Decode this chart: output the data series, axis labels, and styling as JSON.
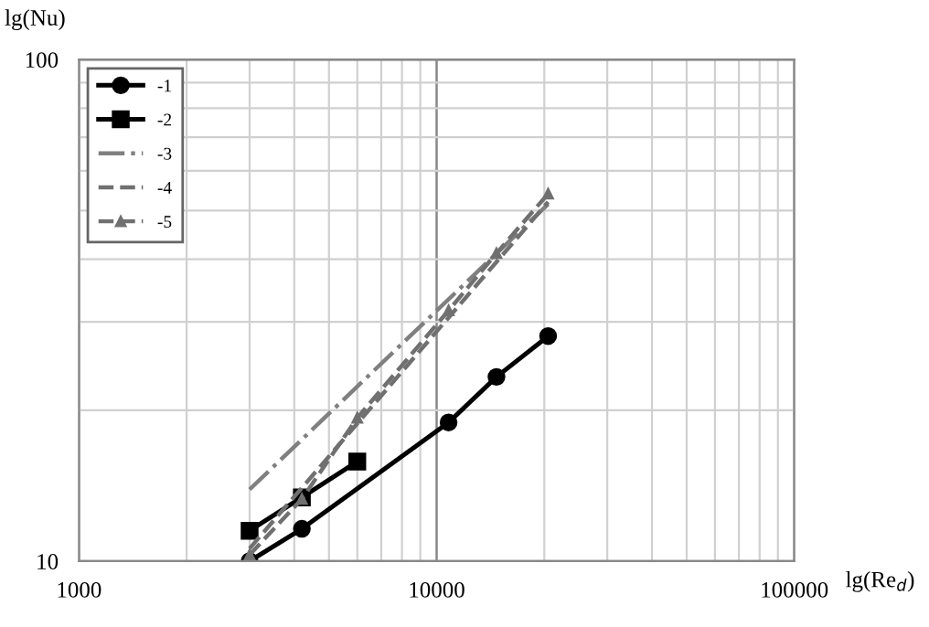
{
  "chart_data": {
    "type": "line",
    "xlabel": "lg(Re$_{d}$)",
    "ylabel": "lg(Nu)",
    "log": "xy",
    "xlim": [
      1000,
      100000
    ],
    "xticks": [
      1000,
      10000,
      100000
    ],
    "ylim": [
      10,
      100
    ],
    "yticks": [
      10,
      100
    ],
    "grid": true,
    "legend": "top left",
    "series": [
      {
        "name": "-1",
        "color": "#000000",
        "marker": "circle",
        "line_style": "solid",
        "x": [
          3000,
          4200,
          10800,
          14700,
          20500
        ],
        "values": [
          10.0,
          11.6,
          18.9,
          23.3,
          28.1
        ]
      },
      {
        "name": "-2",
        "color": "#000000",
        "marker": "square",
        "line_style": "solid",
        "x": [
          3000,
          4200,
          6000
        ],
        "values": [
          11.5,
          13.4,
          15.8
        ]
      },
      {
        "name": "-3",
        "color": "#808080",
        "marker": "none",
        "line_style": "dashdot",
        "x": [
          3000,
          20500
        ],
        "values": [
          13.9,
          51.5
        ]
      },
      {
        "name": "-4",
        "color": "#707070",
        "marker": "none",
        "line_style": "dashed",
        "x": [
          3000,
          20500
        ],
        "values": [
          10.6,
          52.0
        ]
      },
      {
        "name": "-5",
        "color": "#707070",
        "marker": "triangle",
        "line_style": "dashed",
        "x": [
          3000,
          4200,
          6000,
          10800,
          14700,
          20500
        ],
        "values": [
          10.3,
          13.3,
          19.3,
          31.6,
          41.1,
          54.0
        ]
      }
    ]
  }
}
